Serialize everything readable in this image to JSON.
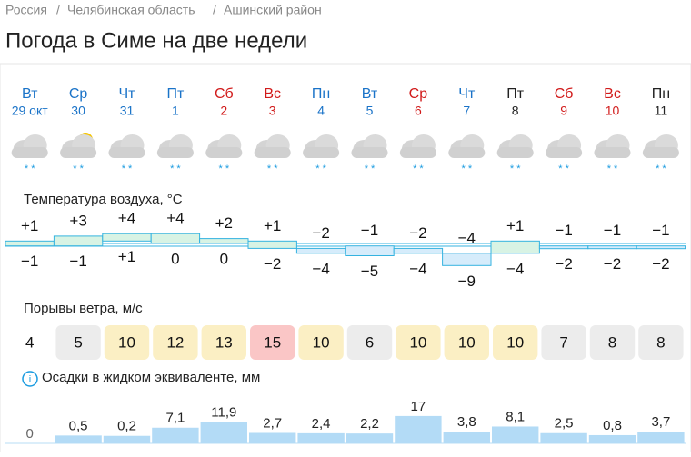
{
  "breadcrumb": [
    "Россия",
    "Челябинская область",
    "Ашинский район"
  ],
  "title": "Погода в Симе на две недели",
  "sections": {
    "temperature": "Температура воздуха, °C",
    "wind": "Порывы ветра, м/с",
    "precip": "Осадки в жидком эквиваленте, мм",
    "info": "i"
  },
  "days": [
    {
      "dow": "Вт",
      "date": "29 окт",
      "color": "#1a73c8",
      "max": {
        "value": 1,
        "label": "+1"
      },
      "min": {
        "value": -1,
        "label": "−1"
      },
      "wind": 4,
      "wind_color": "#ffffff",
      "precip": {
        "value": 0,
        "label": "0"
      }
    },
    {
      "dow": "Ср",
      "date": "30",
      "color": "#1a73c8",
      "max": {
        "value": 3,
        "label": "+3"
      },
      "min": {
        "value": -1,
        "label": "−1"
      },
      "wind": 5,
      "wind_color": "#ececec",
      "precip": {
        "value": 0.5,
        "label": "0,5"
      }
    },
    {
      "dow": "Чт",
      "date": "31",
      "color": "#1a73c8",
      "max": {
        "value": 4,
        "label": "+4"
      },
      "min": {
        "value": 1,
        "label": "+1"
      },
      "wind": 10,
      "wind_color": "#fbefc4",
      "precip": {
        "value": 0.2,
        "label": "0,2"
      }
    },
    {
      "dow": "Пт",
      "date": "1",
      "color": "#1a73c8",
      "max": {
        "value": 4,
        "label": "+4"
      },
      "min": {
        "value": 0,
        "label": "0"
      },
      "wind": 12,
      "wind_color": "#fbefc4",
      "precip": {
        "value": 7.1,
        "label": "7,1"
      }
    },
    {
      "dow": "Сб",
      "date": "2",
      "color": "#d11a1a",
      "max": {
        "value": 2,
        "label": "+2"
      },
      "min": {
        "value": 0,
        "label": "0"
      },
      "wind": 13,
      "wind_color": "#fbefc4",
      "precip": {
        "value": 11.9,
        "label": "11,9"
      }
    },
    {
      "dow": "Вс",
      "date": "3",
      "color": "#d11a1a",
      "max": {
        "value": 1,
        "label": "+1"
      },
      "min": {
        "value": -2,
        "label": "−2"
      },
      "wind": 15,
      "wind_color": "#fac6c6",
      "precip": {
        "value": 2.7,
        "label": "2,7"
      }
    },
    {
      "dow": "Пн",
      "date": "4",
      "color": "#1a73c8",
      "max": {
        "value": -2,
        "label": "−2"
      },
      "min": {
        "value": -4,
        "label": "−4"
      },
      "wind": 10,
      "wind_color": "#fbefc4",
      "precip": {
        "value": 2.4,
        "label": "2,4"
      }
    },
    {
      "dow": "Вт",
      "date": "5",
      "color": "#1a73c8",
      "max": {
        "value": -1,
        "label": "−1"
      },
      "min": {
        "value": -5,
        "label": "−5"
      },
      "wind": 6,
      "wind_color": "#ececec",
      "precip": {
        "value": 2.2,
        "label": "2,2"
      }
    },
    {
      "dow": "Ср",
      "date": "6",
      "color": "#d11a1a",
      "max": {
        "value": -2,
        "label": "−2"
      },
      "min": {
        "value": -4,
        "label": "−4"
      },
      "wind": 10,
      "wind_color": "#fbefc4",
      "precip": {
        "value": 17,
        "label": "17"
      }
    },
    {
      "dow": "Чт",
      "date": "7",
      "color": "#1a73c8",
      "max": {
        "value": -4,
        "label": "−4"
      },
      "min": {
        "value": -9,
        "label": "−9"
      },
      "wind": 10,
      "wind_color": "#fbefc4",
      "precip": {
        "value": 3.8,
        "label": "3,8"
      }
    },
    {
      "dow": "Пт",
      "date": "8",
      "color": "#222222",
      "max": {
        "value": 1,
        "label": "+1"
      },
      "min": {
        "value": -4,
        "label": "−4"
      },
      "wind": 10,
      "wind_color": "#fbefc4",
      "precip": {
        "value": 8.1,
        "label": "8,1"
      }
    },
    {
      "dow": "Сб",
      "date": "9",
      "color": "#d11a1a",
      "max": {
        "value": -1,
        "label": "−1"
      },
      "min": {
        "value": -2,
        "label": "−2"
      },
      "wind": 7,
      "wind_color": "#ececec",
      "precip": {
        "value": 2.5,
        "label": "2,5"
      }
    },
    {
      "dow": "Вс",
      "date": "10",
      "color": "#d11a1a",
      "max": {
        "value": -1,
        "label": "−1"
      },
      "min": {
        "value": -2,
        "label": "−2"
      },
      "wind": 8,
      "wind_color": "#ececec",
      "precip": {
        "value": 0.8,
        "label": "0,8"
      }
    },
    {
      "dow": "Пн",
      "date": "11",
      "color": "#222222",
      "max": {
        "value": -1,
        "label": "−1"
      },
      "min": {
        "value": -2,
        "label": "−2"
      },
      "wind": 8,
      "wind_color": "#ececec",
      "precip": {
        "value": 3.7,
        "label": "3,7"
      }
    }
  ]
}
